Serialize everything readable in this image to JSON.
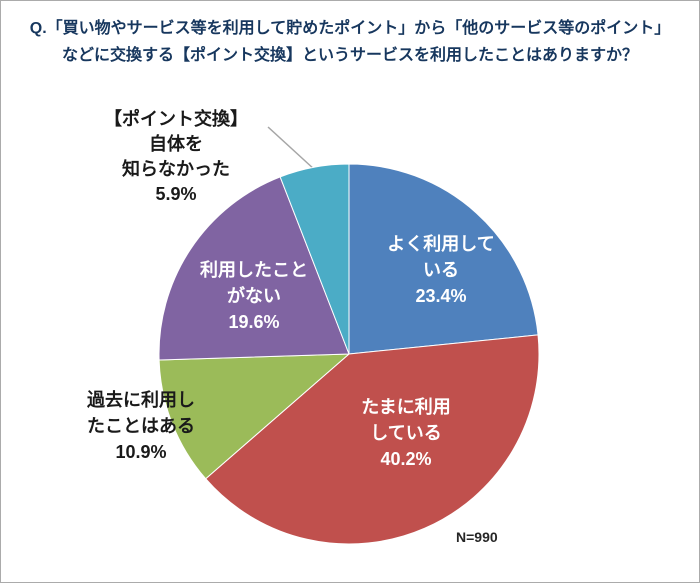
{
  "title": {
    "line1": "Q.「買い物やサービス等を利用して貯めたポイント」から「他のサービス等のポイント」",
    "line2": "などに交換する【ポイント交換】というサービスを利用したことはありますか？"
  },
  "labels": {
    "slice0": "よく利用して\nいる\n23.4%",
    "slice1": "たまに利用\nしている\n40.2%",
    "slice2": "過去に利用し\nたことはある\n10.9%",
    "slice3": "利用したこと\nがない\n19.6%",
    "slice4": "【ポイント交換】\n自体を\n知らなかった\n5.9%"
  },
  "footer": {
    "n": "N=990"
  },
  "chart_data": {
    "type": "pie",
    "title": "Q.「買い物やサービス等を利用して貯めたポイント」から「他のサービス等のポイント」などに交換する【ポイント交換】というサービスを利用したことはありますか？",
    "categories": [
      "よく利用している",
      "たまに利用している",
      "過去に利用したことはある",
      "利用したことがない",
      "【ポイント交換】自体を知らなかった"
    ],
    "values": [
      23.4,
      40.2,
      10.9,
      19.6,
      5.9
    ],
    "unit": "%",
    "colors": [
      "#4f81bd",
      "#c0504d",
      "#9bbb59",
      "#8064a2",
      "#4bacc6"
    ],
    "start_angle_deg": -90,
    "direction": "clockwise",
    "legend": "none",
    "sample_size": "N=990",
    "label_placement": "inside for large slices, outside for small slices",
    "title_color": "#17375e",
    "leader_line_color": "#a6a6a6"
  }
}
